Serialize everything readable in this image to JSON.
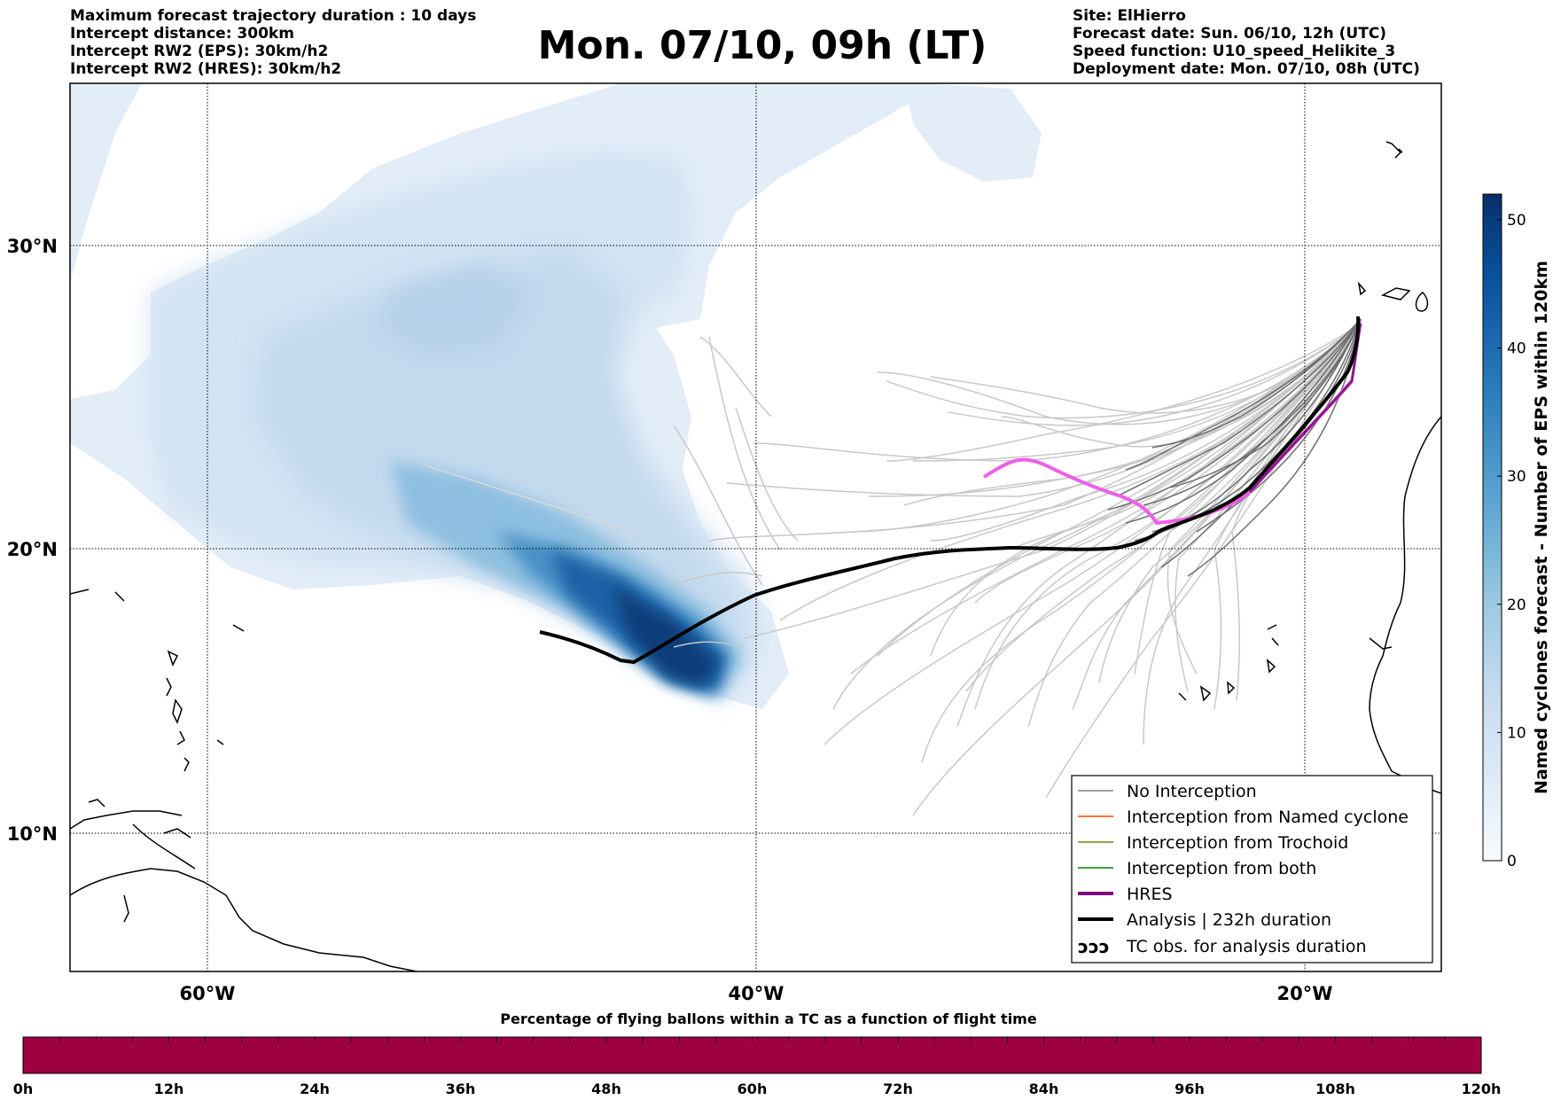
{
  "header": {
    "left_lines": [
      "Maximum forecast trajectory duration : 10 days",
      "Intercept distance: 300km",
      "Intercept RW2 (EPS):  30km/h2",
      "Intercept RW2 (HRES): 30km/h2"
    ],
    "title": "Mon. 07/10, 09h (LT)",
    "right_lines": [
      "Site: ElHierro",
      "Forecast date: Sun. 06/10, 12h (UTC)",
      "Speed function: U10_speed_Helikite_3",
      "Deployment date: Mon. 07/10, 08h (UTC)"
    ]
  },
  "map": {
    "lat_labels": [
      "30°N",
      "20°N",
      "10°N"
    ],
    "lon_labels": [
      "60°W",
      "40°W",
      "20°W"
    ],
    "legend": [
      {
        "label": "No Interception",
        "color": "#808080",
        "style": "thin"
      },
      {
        "label": "Interception from Named cyclone",
        "color": "#ff4500",
        "style": "thin"
      },
      {
        "label": "Interception from Trochoid",
        "color": "#808000",
        "style": "thin"
      },
      {
        "label": "Interception from both",
        "color": "#008000",
        "style": "thin"
      },
      {
        "label": "HRES",
        "color": "#800080",
        "style": "thick"
      },
      {
        "label": "Analysis | 232h duration",
        "color": "#000000",
        "style": "thick"
      },
      {
        "label": "TC obs. for analysis duration",
        "color": "#000000",
        "style": "symbol",
        "symbol": "ↄↄↄ"
      }
    ]
  },
  "colorbar": {
    "label": "Named cyclones forecast - Number of EPS within 120km",
    "ticks": [
      "0",
      "10",
      "20",
      "30",
      "40",
      "50"
    ],
    "min": 0,
    "max": 52
  },
  "time_bar": {
    "title": "Percentage of flying ballons within a TC as a function of flight time",
    "color": "#9e0142",
    "ticks": [
      "0h",
      "12h",
      "24h",
      "36h",
      "48h",
      "60h",
      "72h",
      "84h",
      "96h",
      "108h",
      "120h"
    ]
  }
}
